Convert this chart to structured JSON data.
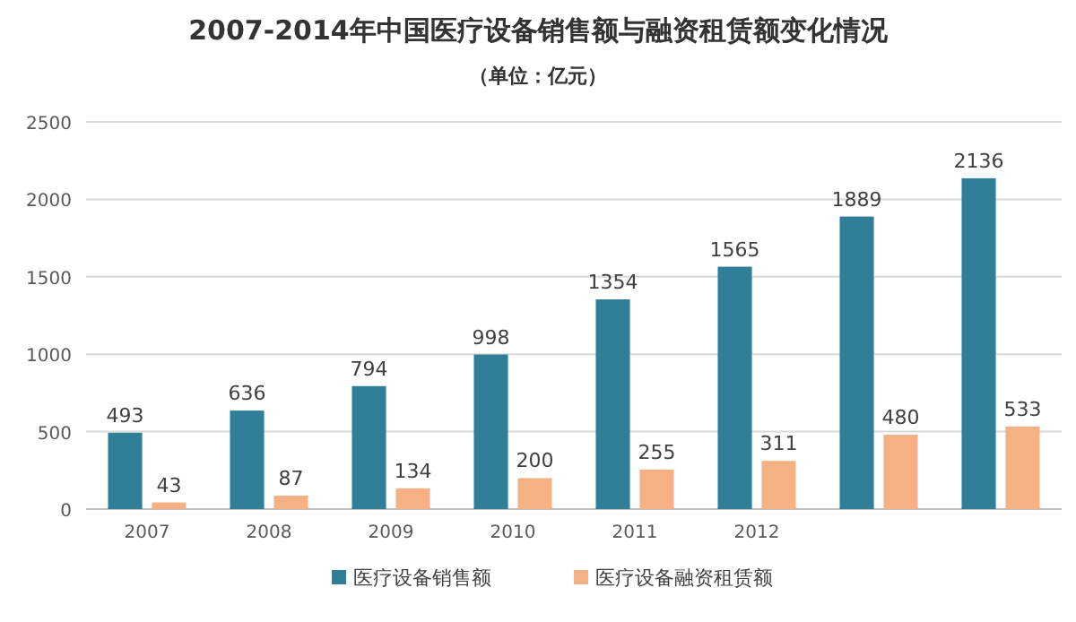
{
  "chart_data": {
    "type": "bar",
    "title": "2007-2014年中国医疗设备销售额与融资租赁额变化情况",
    "subtitle": "（单位：亿元）",
    "categories": [
      "2007",
      "2008",
      "2009",
      "2010",
      "2011",
      "2012",
      null,
      null
    ],
    "series": [
      {
        "name": "医疗设备销售额",
        "color": "#2f7f98",
        "values": [
          493,
          636,
          794,
          998,
          1354,
          1565,
          1889,
          2136
        ]
      },
      {
        "name": "医疗设备融资租赁额",
        "color": "#f5b183",
        "values": [
          43,
          87,
          134,
          200,
          255,
          311,
          480,
          533
        ]
      }
    ],
    "ylim": [
      0,
      2500
    ],
    "yticks": [
      0,
      500,
      1000,
      1500,
      2000,
      2500
    ],
    "grid": "y",
    "legend": "bottom",
    "data_labels": true
  }
}
